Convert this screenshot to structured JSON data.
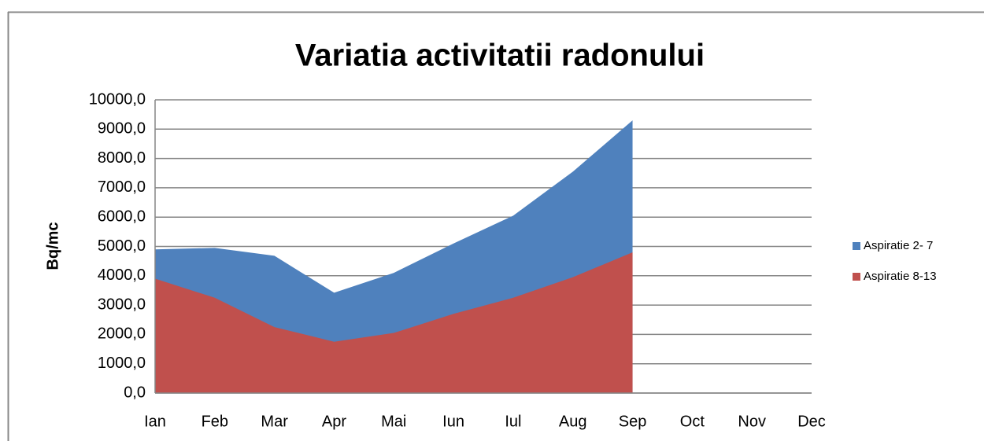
{
  "chart_data": {
    "type": "area",
    "title": "Variatia activitatii radonului",
    "y_label": "Bq/mc",
    "categories": [
      "Ian",
      "Feb",
      "Mar",
      "Apr",
      "Mai",
      "Iun",
      "Iul",
      "Aug",
      "Sep",
      "Oct",
      "Nov",
      "Dec"
    ],
    "series": [
      {
        "name": "Aspiratie 2- 7",
        "color": "#4f81bd",
        "values": [
          4900,
          4950,
          4680,
          3420,
          4100,
          5100,
          6050,
          7550,
          9300,
          null,
          null,
          null
        ]
      },
      {
        "name": "Aspiratie  8-13",
        "color": "#c0504d",
        "values": [
          3900,
          3250,
          2250,
          1750,
          2050,
          2700,
          3250,
          3950,
          4800,
          null,
          null,
          null
        ]
      }
    ],
    "ylim": [
      0,
      10000
    ],
    "yticks": [
      {
        "value": 0,
        "label": "0,0"
      },
      {
        "value": 1000,
        "label": "1000,0"
      },
      {
        "value": 2000,
        "label": "2000,0"
      },
      {
        "value": 3000,
        "label": "3000,0"
      },
      {
        "value": 4000,
        "label": "4000,0"
      },
      {
        "value": 5000,
        "label": "5000,0"
      },
      {
        "value": 6000,
        "label": "6000,0"
      },
      {
        "value": 7000,
        "label": "7000,0"
      },
      {
        "value": 8000,
        "label": "8000,0"
      },
      {
        "value": 9000,
        "label": "9000,0"
      },
      {
        "value": 10000,
        "label": "10000,0"
      }
    ],
    "grid": true,
    "legend": "right"
  }
}
